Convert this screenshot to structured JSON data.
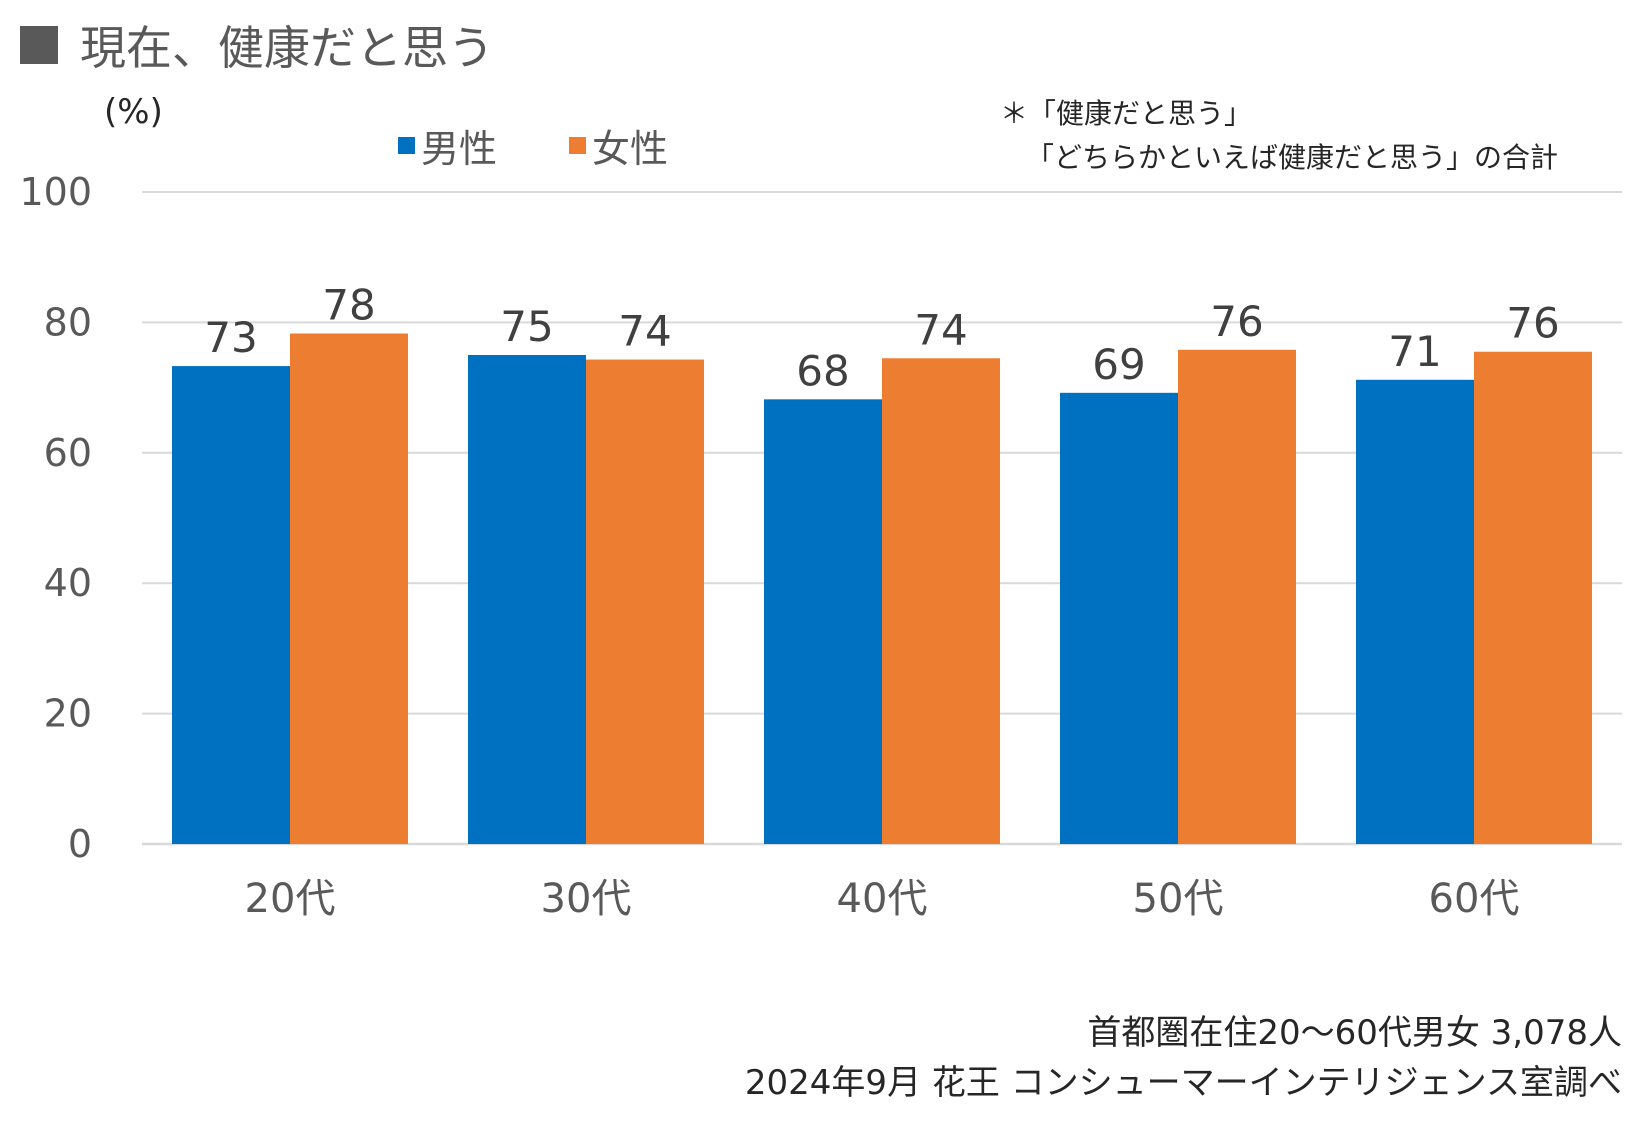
{
  "title": "現在、健康だと思う",
  "unit_label": "(%)",
  "note": {
    "line1": "＊「健康だと思う」",
    "line2": "「どちらかといえば健康だと思う」の合計"
  },
  "footer": {
    "line1": "首都圏在住20～60代男女  3,078人",
    "line2": "2024年9月  花王 コンシューマーインテリジェンス室調べ"
  },
  "colors": {
    "male": "#0070C0",
    "female": "#ED7D31",
    "grid": "#D9D9D9",
    "axis_text": "#595959",
    "label_text": "#404040"
  },
  "chart_data": {
    "type": "bar",
    "title": "現在、健康だと思う",
    "xlabel": "",
    "ylabel": "(%)",
    "categories": [
      "20代",
      "30代",
      "40代",
      "50代",
      "60代"
    ],
    "series": [
      {
        "name": "男性",
        "values": [
          73,
          75,
          68,
          69,
          71
        ],
        "plot_values": [
          73.3,
          75.0,
          68.2,
          69.2,
          71.2
        ]
      },
      {
        "name": "女性",
        "values": [
          78,
          74,
          74,
          76,
          76
        ],
        "plot_values": [
          78.3,
          74.3,
          74.5,
          75.8,
          75.5
        ]
      }
    ],
    "ylim": [
      0,
      100
    ],
    "yticks": [
      0,
      20,
      40,
      60,
      80,
      100
    ],
    "grid": true,
    "legend_position": "top-center"
  }
}
